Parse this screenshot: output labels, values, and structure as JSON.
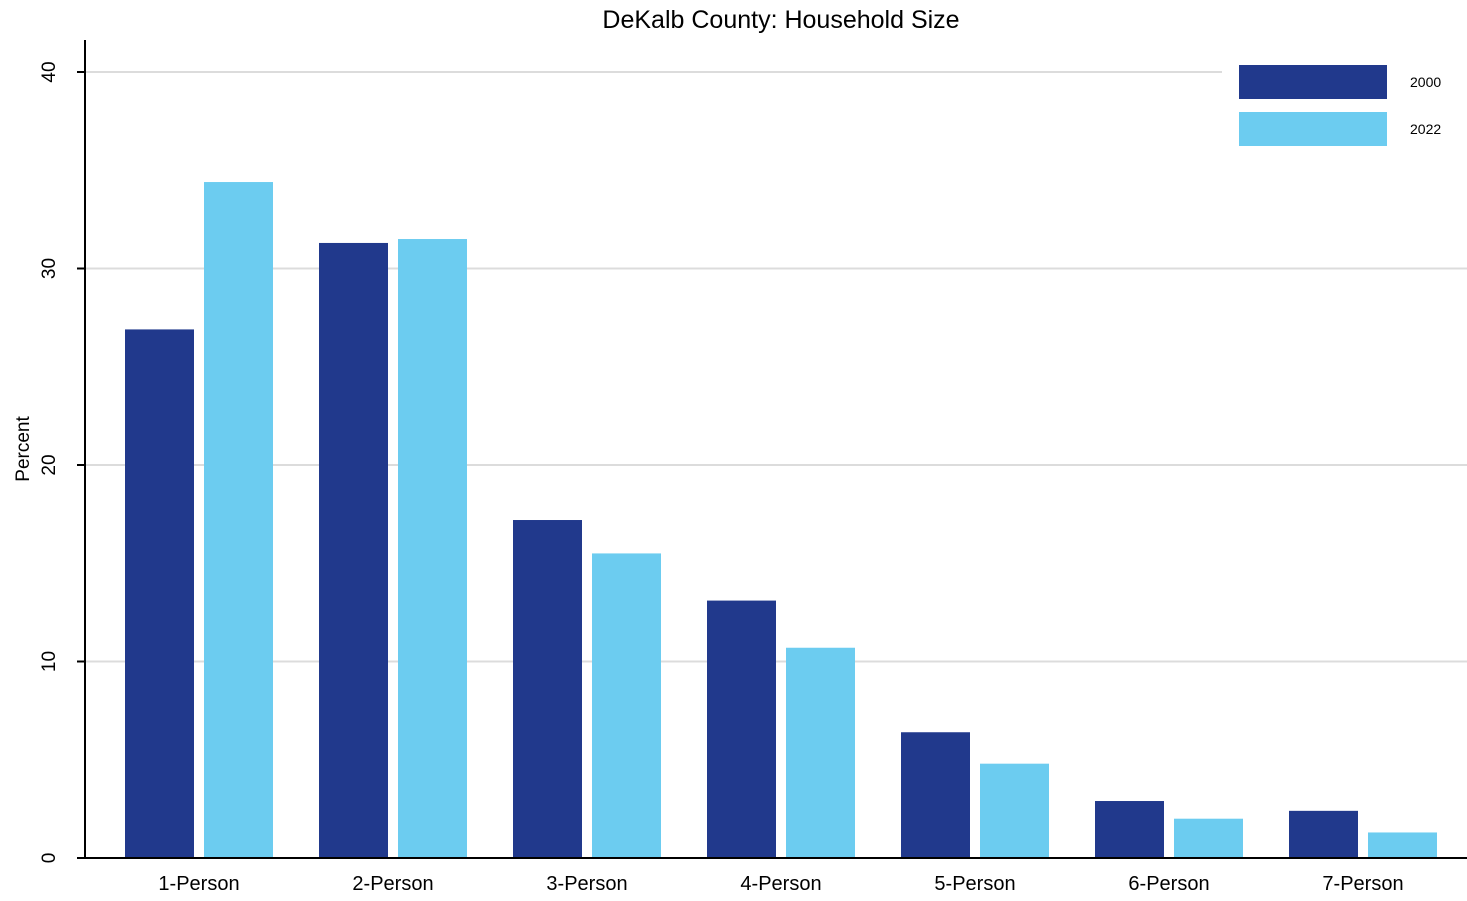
{
  "chart_data": {
    "type": "bar",
    "title": "DeKalb County: Household Size",
    "xlabel": "",
    "ylabel": "Percent",
    "ylim": [
      0,
      41.5
    ],
    "yticks": [
      0,
      10,
      20,
      30,
      40
    ],
    "grid": true,
    "legend_position": "top-right",
    "categories": [
      "1-Person",
      "2-Person",
      "3-Person",
      "4-Person",
      "5-Person",
      "6-Person",
      "7-Person"
    ],
    "series": [
      {
        "name": "2000",
        "color": "#21398c",
        "values": [
          26.9,
          31.3,
          17.2,
          13.1,
          6.4,
          2.9,
          2.4
        ]
      },
      {
        "name": "2022",
        "color": "#6cccf0",
        "values": [
          34.4,
          31.5,
          15.5,
          10.7,
          4.8,
          2.0,
          1.3
        ]
      }
    ]
  }
}
